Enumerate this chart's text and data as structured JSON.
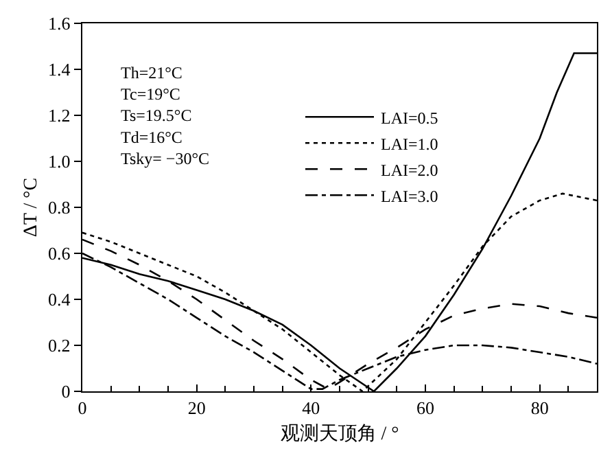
{
  "chart_data": {
    "type": "line",
    "xlabel": "观测天顶角 / °",
    "ylabel": "ΔT / °C",
    "xlim": [
      0,
      90
    ],
    "xticks": [
      0,
      20,
      40,
      60,
      80
    ],
    "ylim": [
      0,
      1.6
    ],
    "yticks": [
      {
        "value": 0,
        "label": "0"
      },
      0.2,
      0.4,
      0.6,
      0.8,
      {
        "value": 1.0,
        "label": "1.0"
      },
      1.2,
      1.4,
      1.6
    ],
    "legend": "top",
    "marker": "none",
    "annotations": [
      "Th=21°C",
      "Tc=19°C",
      "Ts=19.5°C",
      "Td=16°C",
      "Tsky= −30°C"
    ],
    "series": [
      {
        "name": "LAI=0.5",
        "color": "#000000",
        "line_style": "solid",
        "x": [
          0,
          5,
          10,
          15,
          20,
          25,
          30,
          35,
          40,
          45,
          51,
          55,
          60,
          65,
          70,
          75,
          80,
          83,
          86,
          90
        ],
        "values": [
          0.58,
          0.55,
          0.51,
          0.48,
          0.44,
          0.4,
          0.35,
          0.29,
          0.2,
          0.1,
          0.0,
          0.1,
          0.24,
          0.42,
          0.62,
          0.85,
          1.1,
          1.3,
          1.47,
          1.47
        ]
      },
      {
        "name": "LAI=1.0",
        "color": "#000000",
        "line_style": "dotted",
        "x": [
          0,
          5,
          10,
          15,
          20,
          25,
          30,
          35,
          40,
          45,
          49,
          55,
          60,
          65,
          70,
          75,
          80,
          84,
          90
        ],
        "values": [
          0.69,
          0.65,
          0.6,
          0.55,
          0.5,
          0.43,
          0.35,
          0.27,
          0.17,
          0.07,
          0.0,
          0.14,
          0.3,
          0.46,
          0.63,
          0.76,
          0.83,
          0.86,
          0.83
        ]
      },
      {
        "name": "LAI=2.0",
        "color": "#000000",
        "line_style": "dashed",
        "x": [
          0,
          5,
          10,
          15,
          20,
          25,
          30,
          35,
          40,
          43,
          45,
          50,
          55,
          60,
          65,
          70,
          75,
          80,
          85,
          90
        ],
        "values": [
          0.66,
          0.61,
          0.55,
          0.48,
          0.4,
          0.31,
          0.22,
          0.14,
          0.05,
          0.01,
          0.04,
          0.12,
          0.19,
          0.27,
          0.33,
          0.36,
          0.38,
          0.37,
          0.34,
          0.32
        ]
      },
      {
        "name": "LAI=3.0",
        "color": "#000000",
        "line_style": "dashdot",
        "x": [
          0,
          5,
          10,
          15,
          20,
          25,
          30,
          35,
          40,
          42,
          45,
          50,
          55,
          60,
          65,
          70,
          75,
          80,
          85,
          90
        ],
        "values": [
          0.6,
          0.54,
          0.47,
          0.4,
          0.32,
          0.24,
          0.17,
          0.09,
          0.01,
          0.01,
          0.05,
          0.1,
          0.15,
          0.18,
          0.2,
          0.2,
          0.19,
          0.17,
          0.15,
          0.12
        ]
      }
    ]
  }
}
